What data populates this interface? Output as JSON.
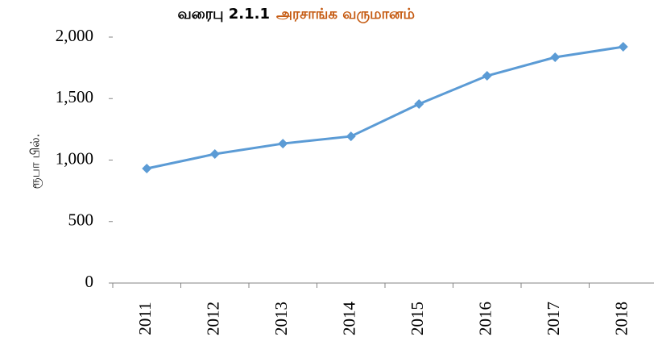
{
  "chart_data": {
    "type": "line",
    "title_label": "வரைபு 2.1.1",
    "title": "அரசாங்க வருமானம்",
    "title_color": "#c55a11",
    "y_label": "ரூபா பில்.",
    "categories": [
      "2011",
      "2012",
      "2013",
      "2014",
      "2015",
      "2016",
      "2017",
      "2018"
    ],
    "series": [
      {
        "name": "அரசாங்க வருமானம்",
        "color": "#5b9bd5",
        "values": [
          931,
          1049,
          1134,
          1193,
          1456,
          1685,
          1836,
          1921
        ]
      }
    ],
    "ylim": [
      0,
      2000
    ],
    "yticks": [
      0,
      500,
      {
        "value": 1000,
        "label": "1,000"
      },
      {
        "value": 1500,
        "label": "1,500"
      },
      {
        "value": 2000,
        "label": "2,000"
      }
    ],
    "grid": false,
    "legend": false
  }
}
